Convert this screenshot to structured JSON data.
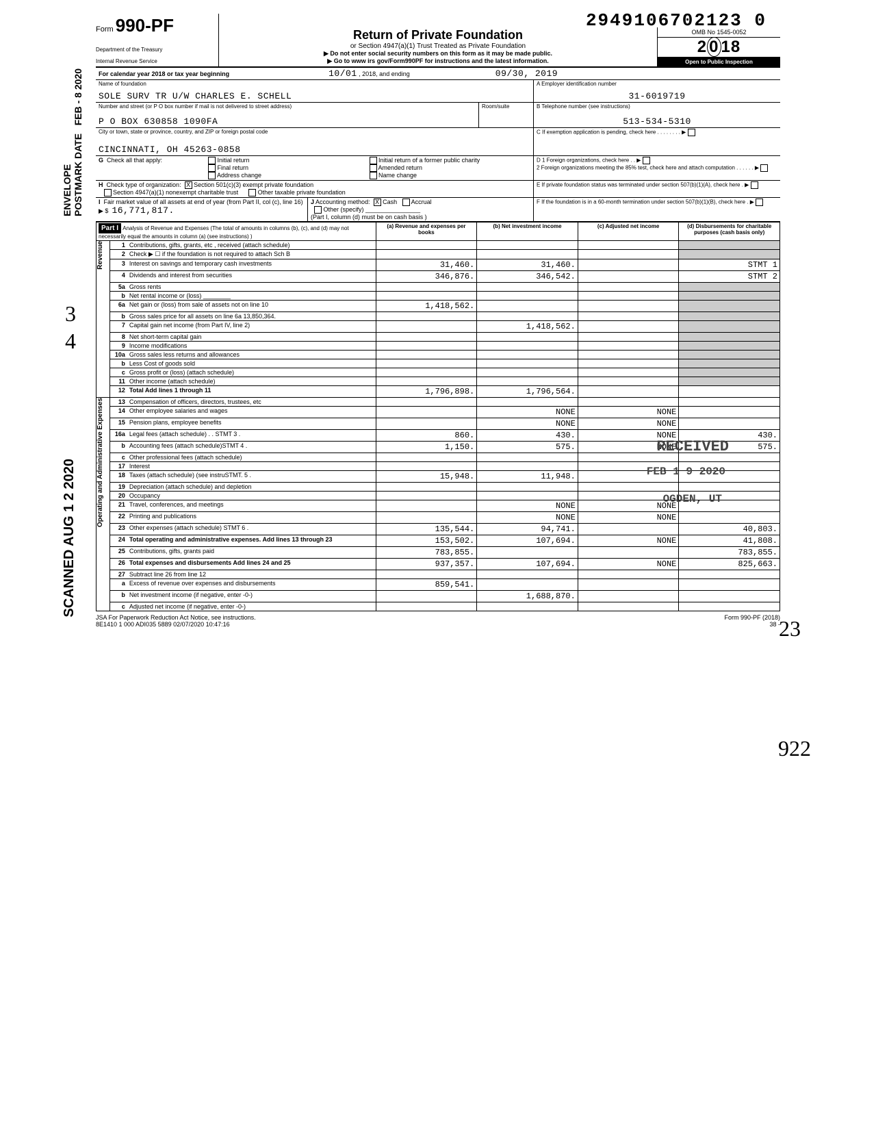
{
  "doc_number": "2949106702123  0",
  "form": {
    "code": "990-PF",
    "prefix": "Form",
    "title": "Return of Private Foundation",
    "subtitle": "or Section 4947(a)(1) Trust Treated as Private Foundation",
    "warning": "▶ Do not enter social security numbers on this form as it may be made public.",
    "goto": "▶ Go to www irs gov/Form990PF for instructions and the latest information.",
    "dept1": "Department of the Treasury",
    "dept2": "Internal Revenue Service",
    "omb": "OMB No 1545-0052",
    "year": "2018",
    "open": "Open to Public Inspection"
  },
  "cal_line": {
    "prefix": "For calendar year 2018 or tax year beginning",
    "begin": "10/01",
    "mid": ", 2018, and ending",
    "end": "09/30, 2019"
  },
  "name_block": {
    "label": "Name of foundation",
    "value": "SOLE SURV TR U/W CHARLES E. SCHELL",
    "addr_label": "Number and street (or P O  box number if mail is not delivered to street address)",
    "addr": "P O BOX 630858 1090FA",
    "room_label": "Room/suite",
    "city_label": "City or town, state or province, country, and ZIP or foreign postal code",
    "city": "CINCINNATI, OH 45263-0858"
  },
  "ein_block": {
    "a_label": "A  Employer identification number",
    "ein": "31-6019719",
    "b_label": "B  Telephone number (see instructions)",
    "phone": "513-534-5310",
    "c_label": "C  If exemption application is pending, check here",
    "d1": "D  1  Foreign organizations, check here",
    "d2": "2  Foreign organizations meeting the 85% test, check here and attach computation",
    "e": "E  If private foundation status was terminated under section 507(b)(1)(A), check here",
    "f": "F  If the foundation is in a 60-month termination under section 507(b)(1)(B), check here"
  },
  "g": {
    "label": "G  Check all that apply:",
    "opts": [
      "Initial return",
      "Final return",
      "Address change",
      "Initial return of a former public charity",
      "Amended return",
      "Name change"
    ]
  },
  "h": {
    "label": "H  Check type of organization:",
    "o1": "Section 501(c)(3) exempt private foundation",
    "o2": "Section 4947(a)(1) nonexempt charitable trust",
    "o3": "Other taxable private foundation"
  },
  "i": {
    "label": "I  Fair market value of all assets at end of year (from Part II, col (c), line 16) ▶ $",
    "value": "16,771,817."
  },
  "j": {
    "label": "J Accounting method:",
    "cash": "Cash",
    "accrual": "Accrual",
    "other": "Other (specify)",
    "note": "(Part I, column (d) must be on cash basis )"
  },
  "part1": {
    "label": "Part I",
    "title": "Analysis of Revenue and Expenses (The total of amounts in columns (b), (c), and (d) may not necessarily equal the amounts in column (a) (see instructions) )",
    "cols": {
      "a": "(a) Revenue and expenses per books",
      "b": "(b) Net investment income",
      "c": "(c) Adjusted net income",
      "d": "(d) Disbursements for charitable purposes (cash basis only)"
    }
  },
  "lines": [
    {
      "n": "1",
      "desc": "Contributions, gifts, grants, etc , received (attach schedule)",
      "a": "",
      "b": "",
      "c": "",
      "d": ""
    },
    {
      "n": "2",
      "desc": "Check ▶ ☐ if the foundation is not required to attach Sch B",
      "a": "",
      "b": "",
      "c": "",
      "d": ""
    },
    {
      "n": "3",
      "desc": "Interest on savings and temporary cash investments",
      "a": "31,460.",
      "b": "31,460.",
      "c": "",
      "d": "STMT 1"
    },
    {
      "n": "4",
      "desc": "Dividends and interest from securities",
      "a": "346,876.",
      "b": "346,542.",
      "c": "",
      "d": "STMT 2"
    },
    {
      "n": "5a",
      "desc": "Gross rents",
      "a": "",
      "b": "",
      "c": "",
      "d": ""
    },
    {
      "n": "b",
      "desc": "Net rental income or (loss) ________",
      "a": "",
      "b": "",
      "c": "",
      "d": ""
    },
    {
      "n": "6a",
      "desc": "Net gain or (loss) from sale of assets not on line 10",
      "a": "1,418,562.",
      "b": "",
      "c": "",
      "d": ""
    },
    {
      "n": "b",
      "desc": "Gross sales price for all assets on line 6a   13,850,364.",
      "a": "",
      "b": "",
      "c": "",
      "d": ""
    },
    {
      "n": "7",
      "desc": "Capital gain net income (from Part IV, line 2)",
      "a": "",
      "b": "1,418,562.",
      "c": "",
      "d": ""
    },
    {
      "n": "8",
      "desc": "Net short-term capital gain",
      "a": "",
      "b": "",
      "c": "",
      "d": ""
    },
    {
      "n": "9",
      "desc": "Income modifications",
      "a": "",
      "b": "",
      "c": "",
      "d": ""
    },
    {
      "n": "10a",
      "desc": "Gross sales less returns and allowances",
      "a": "",
      "b": "",
      "c": "",
      "d": ""
    },
    {
      "n": "b",
      "desc": "Less  Cost of goods sold",
      "a": "",
      "b": "",
      "c": "",
      "d": ""
    },
    {
      "n": "c",
      "desc": "Gross profit or (loss) (attach schedule)",
      "a": "",
      "b": "",
      "c": "",
      "d": ""
    },
    {
      "n": "11",
      "desc": "Other income (attach schedule)",
      "a": "",
      "b": "",
      "c": "",
      "d": ""
    },
    {
      "n": "12",
      "desc": "Total Add lines 1 through 11",
      "a": "1,796,898.",
      "b": "1,796,564.",
      "c": "",
      "d": "",
      "bold": true
    },
    {
      "n": "13",
      "desc": "Compensation of officers, directors, trustees, etc",
      "a": "",
      "b": "",
      "c": "",
      "d": ""
    },
    {
      "n": "14",
      "desc": "Other employee salaries and wages",
      "a": "",
      "b": "NONE",
      "c": "NONE",
      "d": ""
    },
    {
      "n": "15",
      "desc": "Pension plans, employee benefits",
      "a": "",
      "b": "NONE",
      "c": "NONE",
      "d": ""
    },
    {
      "n": "16a",
      "desc": "Legal fees (attach schedule) . . STMT 3 .",
      "a": "860.",
      "b": "430.",
      "c": "NONE",
      "d": "430."
    },
    {
      "n": "b",
      "desc": "Accounting fees (attach schedule)STMT 4 .",
      "a": "1,150.",
      "b": "575.",
      "c": "NONE",
      "d": "575."
    },
    {
      "n": "c",
      "desc": "Other professional fees (attach schedule)",
      "a": "",
      "b": "",
      "c": "",
      "d": ""
    },
    {
      "n": "17",
      "desc": "Interest",
      "a": "",
      "b": "",
      "c": "",
      "d": ""
    },
    {
      "n": "18",
      "desc": "Taxes (attach schedule) (see instruSTMT. 5 .",
      "a": "15,948.",
      "b": "11,948.",
      "c": "",
      "d": ""
    },
    {
      "n": "19",
      "desc": "Depreciation (attach schedule) and depletion",
      "a": "",
      "b": "",
      "c": "",
      "d": ""
    },
    {
      "n": "20",
      "desc": "Occupancy",
      "a": "",
      "b": "",
      "c": "",
      "d": ""
    },
    {
      "n": "21",
      "desc": "Travel, conferences, and meetings",
      "a": "",
      "b": "NONE",
      "c": "NONE",
      "d": ""
    },
    {
      "n": "22",
      "desc": "Printing and publications",
      "a": "",
      "b": "NONE",
      "c": "NONE",
      "d": ""
    },
    {
      "n": "23",
      "desc": "Other expenses (attach schedule) STMT 6 .",
      "a": "135,544.",
      "b": "94,741.",
      "c": "",
      "d": "40,803."
    },
    {
      "n": "24",
      "desc": "Total operating and administrative expenses. Add lines 13 through 23",
      "a": "153,502.",
      "b": "107,694.",
      "c": "NONE",
      "d": "41,808.",
      "bold": true
    },
    {
      "n": "25",
      "desc": "Contributions, gifts, grants paid",
      "a": "783,855.",
      "b": "",
      "c": "",
      "d": "783,855."
    },
    {
      "n": "26",
      "desc": "Total expenses and disbursements Add lines 24 and 25",
      "a": "937,357.",
      "b": "107,694.",
      "c": "NONE",
      "d": "825,663.",
      "bold": true
    },
    {
      "n": "27",
      "desc": "Subtract line 26 from line 12",
      "a": "",
      "b": "",
      "c": "",
      "d": ""
    },
    {
      "n": "a",
      "desc": "Excess of revenue over expenses and disbursements",
      "a": "859,541.",
      "b": "",
      "c": "",
      "d": ""
    },
    {
      "n": "b",
      "desc": "Net investment income (if negative, enter -0-)",
      "a": "",
      "b": "1,688,870.",
      "c": "",
      "d": ""
    },
    {
      "n": "c",
      "desc": "Adjusted net income (if negative, enter -0-)",
      "a": "",
      "b": "",
      "c": "",
      "d": ""
    }
  ],
  "side_revenue": "Revenue",
  "side_expenses": "Operating and Administrative Expenses",
  "footer": {
    "left": "JSA  For Paperwork Reduction Act Notice, see instructions.",
    "code": "8E1410 1 000   ADI035 5889 02/07/2020 10:47:16",
    "right": "Form 990-PF (2018)",
    "page": "38   -"
  },
  "side_stamps": {
    "envelope": "ENVELOPE\nPOSTMARK DATE",
    "feb": "FEB  - 8 2020",
    "scanned": "SCANNED  AUG  1 2 2020"
  },
  "received": {
    "title": "RECEIVED",
    "date": "FEB 1 9 2020",
    "where": "OGDEN, UT"
  },
  "hand": {
    "three": "3",
    "four": "4",
    "nine22": "922",
    "twenty3": "23"
  }
}
